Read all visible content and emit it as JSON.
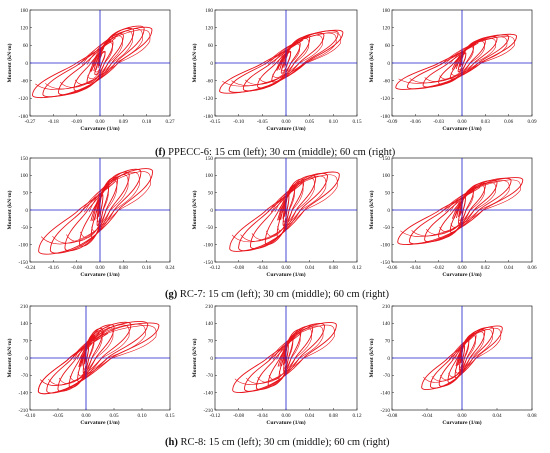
{
  "captions": [
    {
      "letter": "(f)",
      "text": " PPECC-6: 15 cm (left); 30 cm (middle); 60 cm (right)"
    },
    {
      "letter": "(g)",
      "text": " RC-7: 15 cm (left); 30 cm (middle); 60 cm (right)"
    },
    {
      "letter": "(h)",
      "text": " RC-8: 15 cm (left); 30 cm (middle); 60 cm (right)"
    }
  ],
  "colors": {
    "curve": "#e8141c",
    "axes": "#1a1acc",
    "frame": "#222222"
  },
  "chart_data": [
    {
      "type": "line",
      "group": "f",
      "panel": "15 cm",
      "xlabel": "Curvature (1/m)",
      "ylabel": "Moment (kN·m)",
      "xlim": [
        -0.27,
        0.27
      ],
      "ylim": [
        -180,
        180
      ],
      "xticks": [
        "-0.27",
        "-0.18",
        "-0.09",
        "0.00",
        "0.09",
        "0.18",
        "0.27"
      ],
      "yticks": [
        "-180",
        "-120",
        "-60",
        "0",
        "60",
        "120",
        "180"
      ],
      "envelope_pos": [
        [
          0.02,
          40
        ],
        [
          0.05,
          75
        ],
        [
          0.09,
          100
        ],
        [
          0.13,
          118
        ],
        [
          0.17,
          126
        ],
        [
          0.2,
          122
        ]
      ],
      "envelope_neg": [
        [
          -0.02,
          -40
        ],
        [
          -0.05,
          -70
        ],
        [
          -0.1,
          -95
        ],
        [
          -0.16,
          -108
        ],
        [
          -0.22,
          -115
        ],
        [
          -0.26,
          -118
        ]
      ]
    },
    {
      "type": "line",
      "group": "f",
      "panel": "30 cm",
      "xlabel": "Curvature (1/m)",
      "ylabel": "Moment (kN·m)",
      "xlim": [
        -0.15,
        0.15
      ],
      "ylim": [
        -180,
        180
      ],
      "xticks": [
        "-0.15",
        "-0.10",
        "-0.05",
        "0.00",
        "0.05",
        "0.10",
        "0.15"
      ],
      "yticks": [
        "-180",
        "-120",
        "-60",
        "0",
        "60",
        "120",
        "180"
      ],
      "envelope_pos": [
        [
          0.01,
          40
        ],
        [
          0.03,
          70
        ],
        [
          0.05,
          90
        ],
        [
          0.08,
          102
        ],
        [
          0.11,
          110
        ],
        [
          0.12,
          112
        ]
      ],
      "envelope_neg": [
        [
          -0.01,
          -35
        ],
        [
          -0.03,
          -65
        ],
        [
          -0.06,
          -85
        ],
        [
          -0.09,
          -95
        ],
        [
          -0.12,
          -100
        ],
        [
          -0.14,
          -103
        ]
      ]
    },
    {
      "type": "line",
      "group": "f",
      "panel": "60 cm",
      "xlabel": "Curvature (1/m)",
      "ylabel": "Moment (kN·m)",
      "xlim": [
        -0.09,
        0.09
      ],
      "ylim": [
        -180,
        180
      ],
      "xticks": [
        "-0.09",
        "-0.06",
        "-0.03",
        "0.00",
        "0.03",
        "0.06",
        "0.09"
      ],
      "yticks": [
        "-180",
        "-120",
        "-60",
        "0",
        "60",
        "120",
        "180"
      ],
      "envelope_pos": [
        [
          0.005,
          35
        ],
        [
          0.015,
          60
        ],
        [
          0.03,
          80
        ],
        [
          0.045,
          90
        ],
        [
          0.06,
          96
        ],
        [
          0.07,
          98
        ]
      ],
      "envelope_neg": [
        [
          -0.005,
          -30
        ],
        [
          -0.015,
          -55
        ],
        [
          -0.03,
          -72
        ],
        [
          -0.05,
          -82
        ],
        [
          -0.07,
          -88
        ],
        [
          -0.085,
          -90
        ]
      ]
    },
    {
      "type": "line",
      "group": "g",
      "panel": "15 cm",
      "xlabel": "Curvature (1/m)",
      "ylabel": "Moment (kN·m)",
      "xlim": [
        -0.24,
        0.24
      ],
      "ylim": [
        -150,
        150
      ],
      "xticks": [
        "-0.24",
        "-0.16",
        "-0.08",
        "0.00",
        "0.08",
        "0.16",
        "0.24"
      ],
      "yticks": [
        "-150",
        "-100",
        "-50",
        "0",
        "50",
        "100",
        "150"
      ],
      "envelope_pos": [
        [
          0.01,
          45
        ],
        [
          0.03,
          75
        ],
        [
          0.06,
          95
        ],
        [
          0.1,
          110
        ],
        [
          0.14,
          118
        ],
        [
          0.18,
          120
        ]
      ],
      "envelope_neg": [
        [
          -0.01,
          -45
        ],
        [
          -0.03,
          -80
        ],
        [
          -0.07,
          -105
        ],
        [
          -0.12,
          -118
        ],
        [
          -0.17,
          -125
        ],
        [
          -0.21,
          -128
        ]
      ]
    },
    {
      "type": "line",
      "group": "g",
      "panel": "30 cm",
      "xlabel": "Curvature (1/m)",
      "ylabel": "Moment (kN·m)",
      "xlim": [
        -0.12,
        0.12
      ],
      "ylim": [
        -150,
        150
      ],
      "xticks": [
        "-0.12",
        "-0.08",
        "-0.04",
        "0.00",
        "0.04",
        "0.08",
        "0.12"
      ],
      "yticks": [
        "-150",
        "-100",
        "-50",
        "0",
        "50",
        "100",
        "150"
      ],
      "envelope_pos": [
        [
          0.005,
          45
        ],
        [
          0.015,
          72
        ],
        [
          0.03,
          90
        ],
        [
          0.05,
          100
        ],
        [
          0.07,
          106
        ],
        [
          0.09,
          110
        ]
      ],
      "envelope_neg": [
        [
          -0.005,
          -45
        ],
        [
          -0.015,
          -78
        ],
        [
          -0.035,
          -100
        ],
        [
          -0.06,
          -112
        ],
        [
          -0.08,
          -118
        ],
        [
          -0.095,
          -120
        ]
      ]
    },
    {
      "type": "line",
      "group": "g",
      "panel": "60 cm",
      "xlabel": "Curvature (1/m)",
      "ylabel": "Moment (kN·m)",
      "xlim": [
        -0.06,
        0.06
      ],
      "ylim": [
        -150,
        150
      ],
      "xticks": [
        "-0.06",
        "-0.04",
        "-0.02",
        "0.00",
        "0.02",
        "0.04",
        "0.06"
      ],
      "yticks": [
        "-150",
        "-100",
        "-50",
        "0",
        "50",
        "100",
        "150"
      ],
      "envelope_pos": [
        [
          0.003,
          40
        ],
        [
          0.01,
          62
        ],
        [
          0.02,
          78
        ],
        [
          0.03,
          86
        ],
        [
          0.042,
          92
        ],
        [
          0.052,
          94
        ]
      ],
      "envelope_neg": [
        [
          -0.003,
          -40
        ],
        [
          -0.01,
          -65
        ],
        [
          -0.02,
          -82
        ],
        [
          -0.032,
          -92
        ],
        [
          -0.045,
          -98
        ],
        [
          -0.055,
          -100
        ]
      ]
    },
    {
      "type": "line",
      "group": "h",
      "panel": "15 cm",
      "xlabel": "Curvature (1/m)",
      "ylabel": "Moment (kN·m)",
      "xlim": [
        -0.1,
        0.15
      ],
      "ylim": [
        -210,
        210
      ],
      "xticks": [
        "-0.10",
        "-0.05",
        "0.00",
        "0.05",
        "0.10",
        "0.15"
      ],
      "yticks": [
        "-210",
        "-140",
        "-70",
        "0",
        "70",
        "140",
        "210"
      ],
      "envelope_pos": [
        [
          0.005,
          60
        ],
        [
          0.015,
          95
        ],
        [
          0.03,
          120
        ],
        [
          0.05,
          135
        ],
        [
          0.08,
          145
        ],
        [
          0.11,
          148
        ],
        [
          0.13,
          142
        ]
      ],
      "envelope_neg": [
        [
          -0.005,
          -60
        ],
        [
          -0.015,
          -95
        ],
        [
          -0.03,
          -120
        ],
        [
          -0.05,
          -135
        ],
        [
          -0.07,
          -142
        ],
        [
          -0.085,
          -145
        ]
      ]
    },
    {
      "type": "line",
      "group": "h",
      "panel": "30 cm",
      "xlabel": "Curvature (1/m)",
      "ylabel": "Moment (kN·m)",
      "xlim": [
        -0.12,
        0.12
      ],
      "ylim": [
        -210,
        210
      ],
      "xticks": [
        "-0.12",
        "-0.08",
        "-0.04",
        "0.00",
        "0.04",
        "0.08",
        "0.12"
      ],
      "yticks": [
        "-210",
        "-140",
        "-70",
        "0",
        "70",
        "140",
        "210"
      ],
      "envelope_pos": [
        [
          0.004,
          55
        ],
        [
          0.012,
          90
        ],
        [
          0.025,
          115
        ],
        [
          0.045,
          130
        ],
        [
          0.065,
          140
        ],
        [
          0.085,
          144
        ]
      ],
      "envelope_neg": [
        [
          -0.004,
          -55
        ],
        [
          -0.012,
          -90
        ],
        [
          -0.03,
          -115
        ],
        [
          -0.05,
          -128
        ],
        [
          -0.07,
          -135
        ],
        [
          -0.09,
          -140
        ]
      ]
    },
    {
      "type": "line",
      "group": "h",
      "panel": "60 cm",
      "xlabel": "Curvature (1/m)",
      "ylabel": "Moment (kN·m)",
      "xlim": [
        -0.08,
        0.08
      ],
      "ylim": [
        -210,
        210
      ],
      "xticks": [
        "-0.08",
        "-0.04",
        "0.00",
        "0.04",
        "0.08"
      ],
      "yticks": [
        "-210",
        "-140",
        "-70",
        "0",
        "70",
        "140",
        "210"
      ],
      "envelope_pos": [
        [
          0.003,
          50
        ],
        [
          0.008,
          80
        ],
        [
          0.016,
          100
        ],
        [
          0.026,
          115
        ],
        [
          0.036,
          125
        ],
        [
          0.046,
          130
        ]
      ],
      "envelope_neg": [
        [
          -0.003,
          -50
        ],
        [
          -0.008,
          -80
        ],
        [
          -0.016,
          -100
        ],
        [
          -0.026,
          -115
        ],
        [
          -0.036,
          -122
        ],
        [
          -0.046,
          -128
        ]
      ]
    }
  ]
}
